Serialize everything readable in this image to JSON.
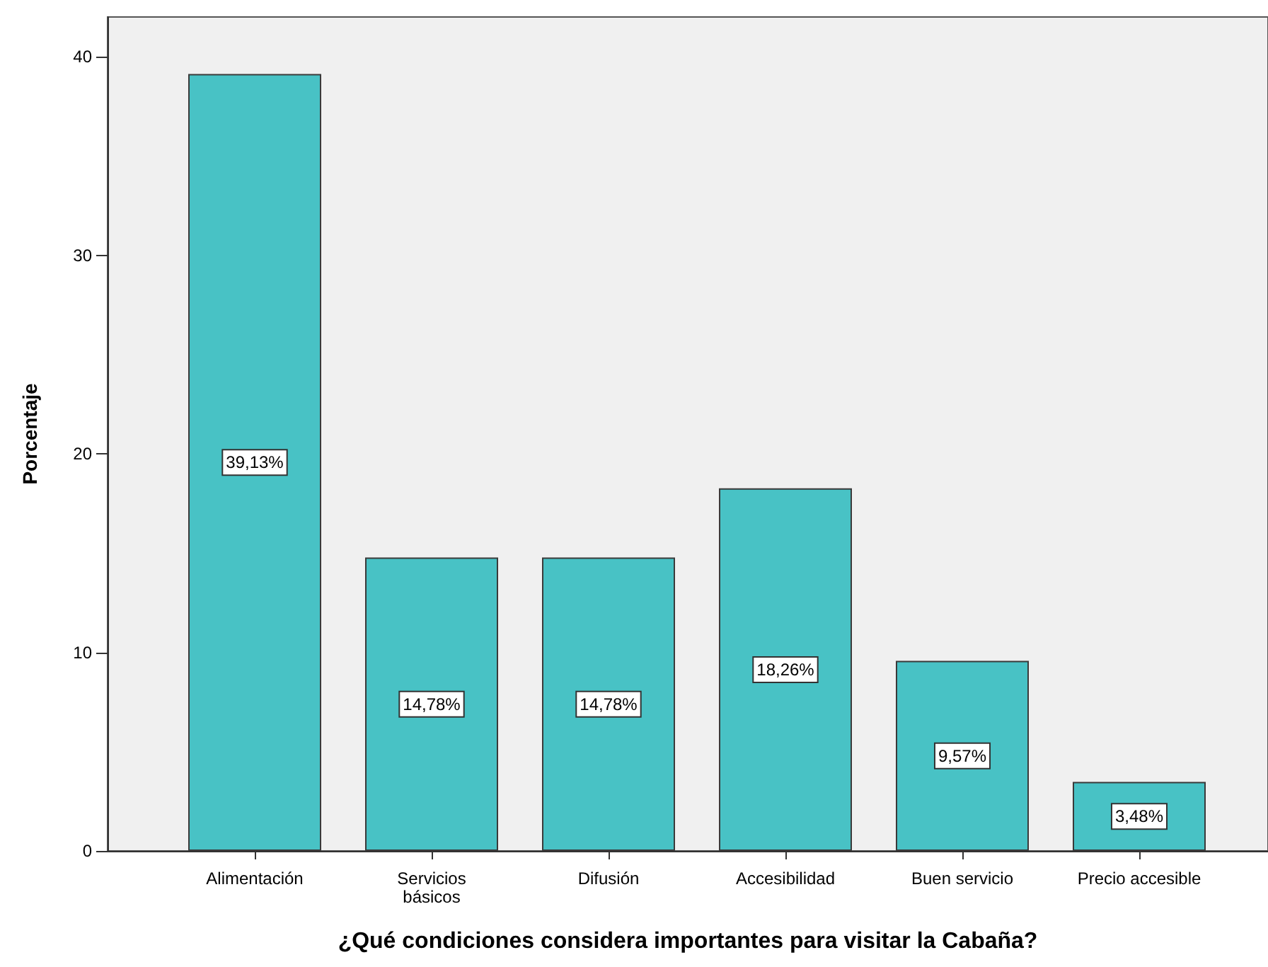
{
  "chart_data": {
    "type": "bar",
    "xlabel": "¿Qué condiciones considera importantes para visitar la Cabaña?",
    "ylabel": "Porcentaje",
    "categories": [
      "Alimentación",
      "Servicios\nbásicos",
      "Difusión",
      "Accesibilidad",
      "Buen servicio",
      "Precio accesible"
    ],
    "values": [
      39.13,
      14.78,
      14.78,
      18.26,
      9.57,
      3.48
    ],
    "color": "#48c2c5",
    "value_labels": [
      "39,13%",
      "14,78%",
      "14,78%",
      "18,26%",
      "9,57%",
      "3,48%"
    ],
    "ylim": [
      0,
      42
    ],
    "yticks": [
      0,
      10,
      20,
      30,
      40
    ]
  }
}
